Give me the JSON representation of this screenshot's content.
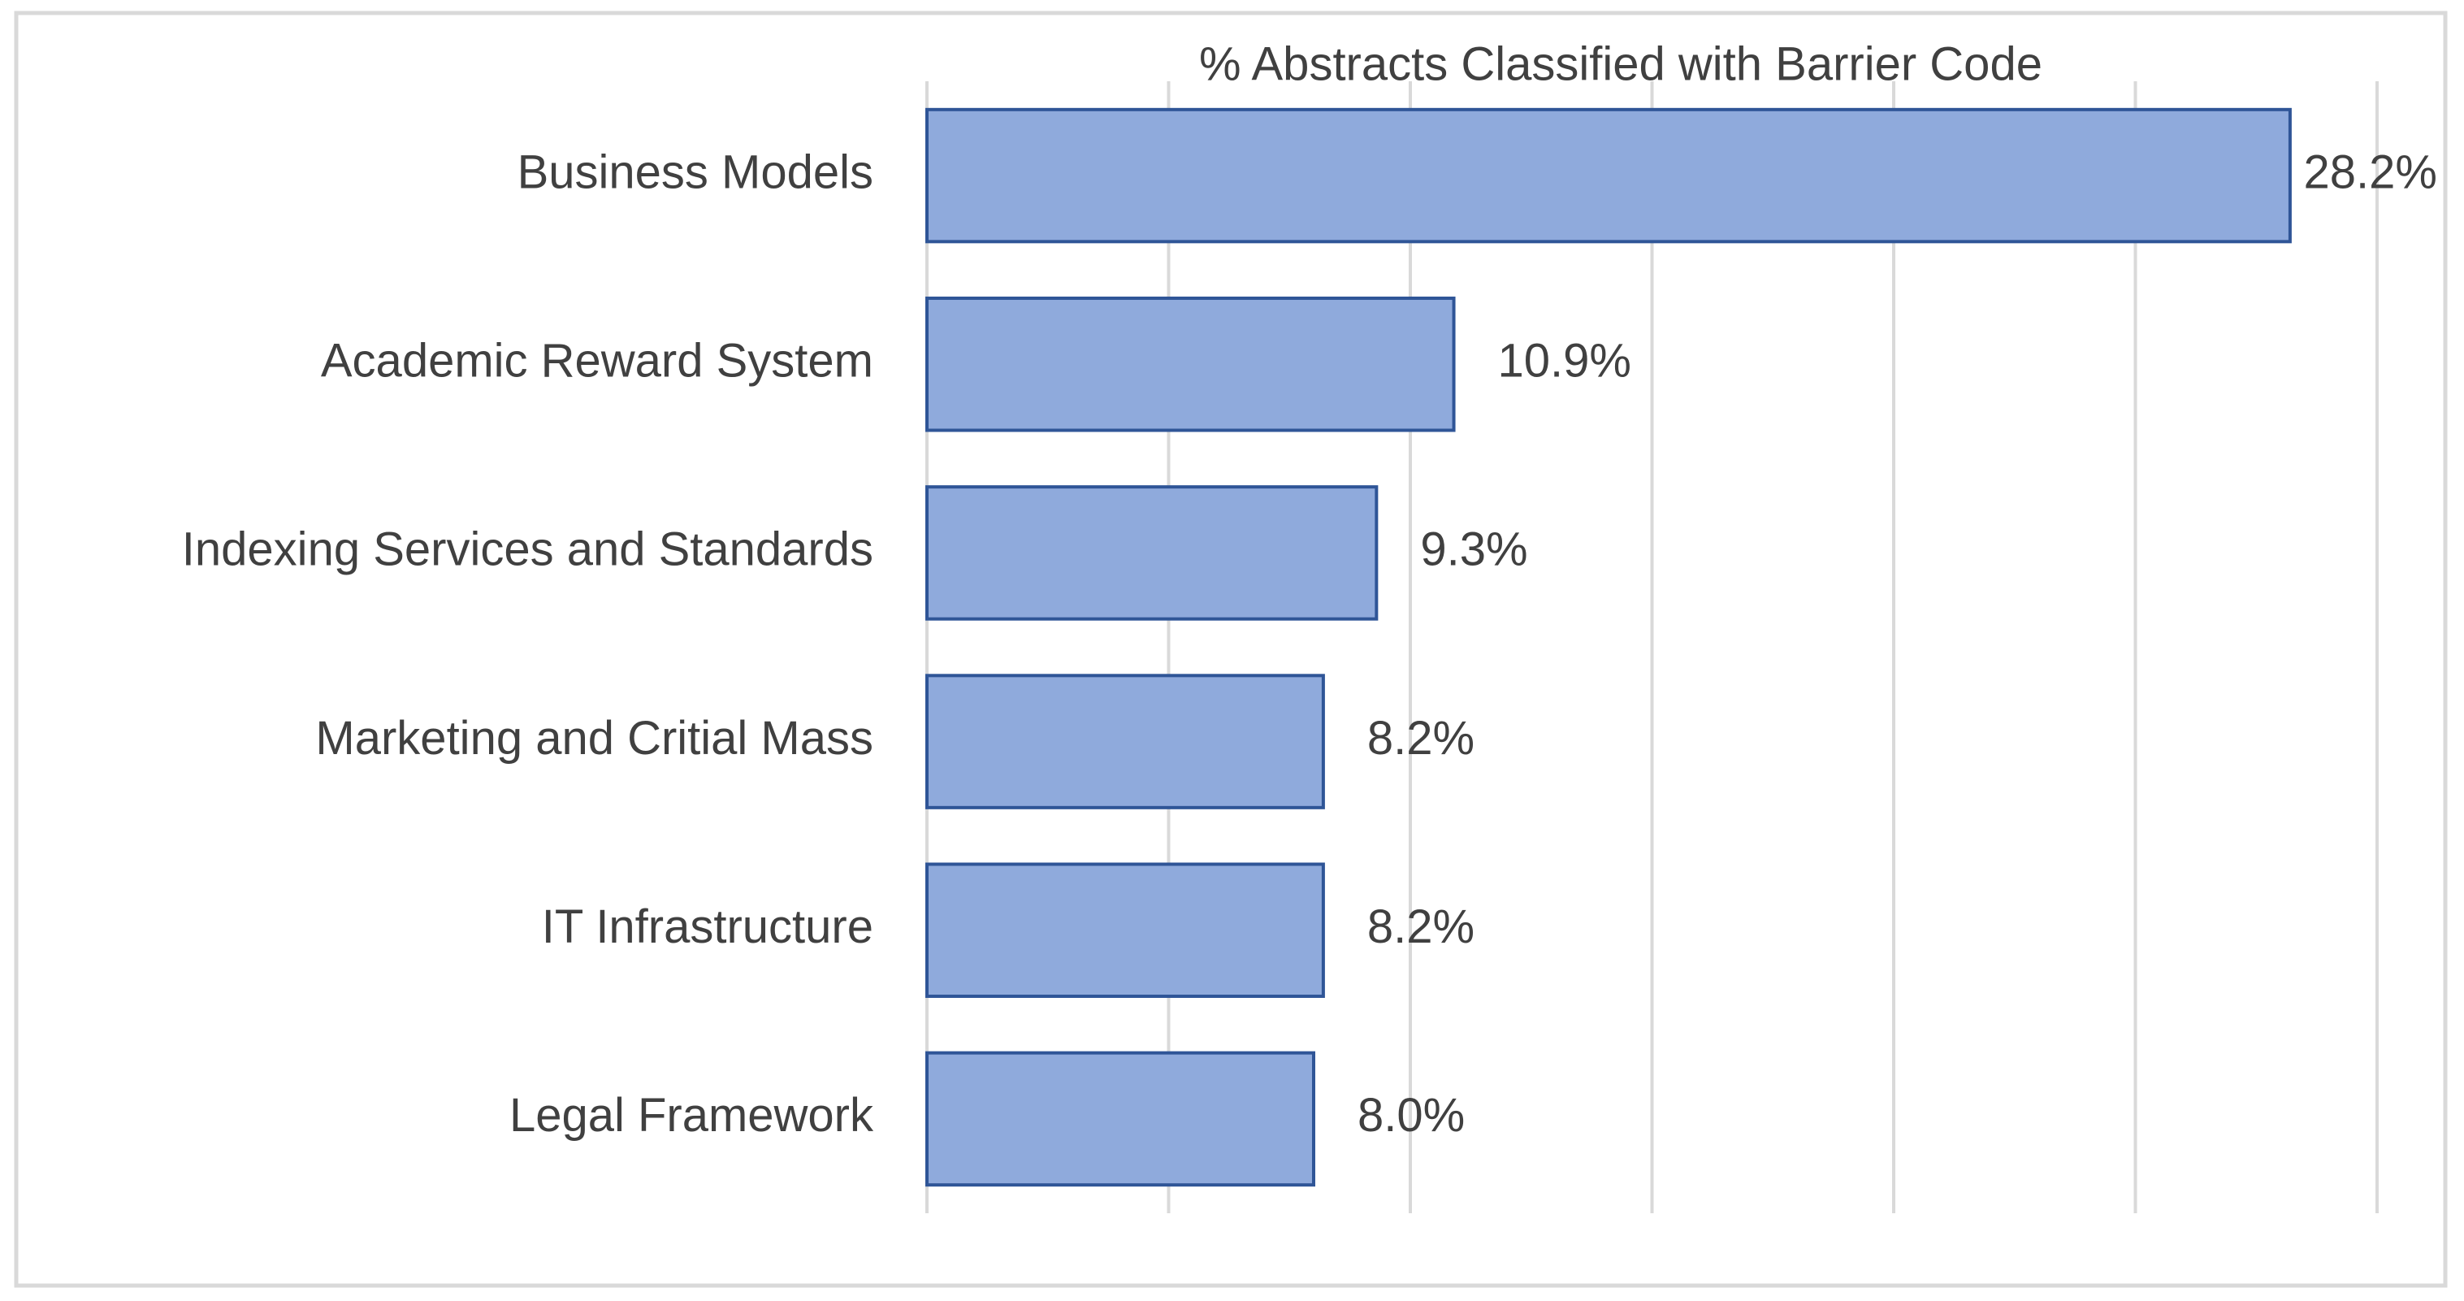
{
  "chart_data": {
    "type": "bar",
    "orientation": "horizontal",
    "title": "% Abstracts Classified with Barrier Code",
    "categories": [
      "Business Models",
      "Academic Reward System",
      "Indexing Services and Standards",
      "Marketing and Critial Mass",
      "IT Infrastructure",
      "Legal Framework"
    ],
    "values": [
      28.2,
      10.9,
      9.3,
      8.2,
      8.2,
      8.0
    ],
    "value_labels": [
      "28.2%",
      "10.9%",
      "9.3%",
      "8.2%",
      "8.2%",
      "8.0%"
    ],
    "color": "#8faadc",
    "edge_color": "#2f5597",
    "xlim": [
      0,
      30
    ],
    "xticks": [
      0,
      5,
      10,
      15,
      20,
      25,
      30
    ],
    "grid": true
  }
}
